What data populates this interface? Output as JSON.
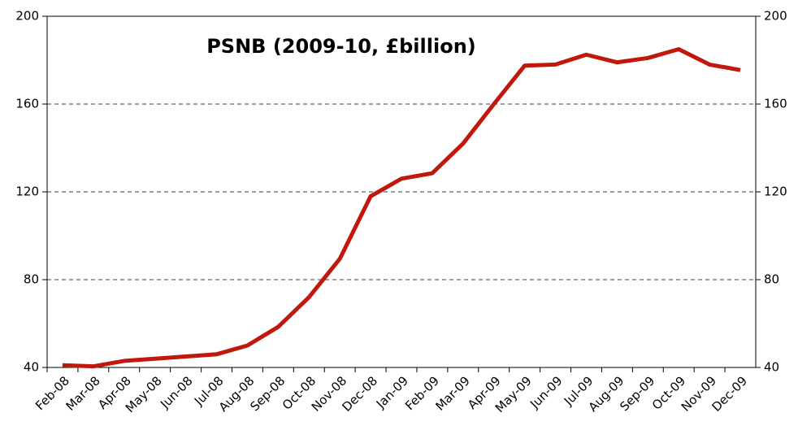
{
  "chart_data": {
    "type": "line",
    "title": "PSNB (2009-10, £billion)",
    "categories": [
      "Feb-08",
      "Mar-08",
      "Apr-08",
      "May-08",
      "Jun-08",
      "Jul-08",
      "Aug-08",
      "Sep-08",
      "Oct-08",
      "Nov-08",
      "Dec-08",
      "Jan-09",
      "Feb-09",
      "Mar-09",
      "Apr-09",
      "May-09",
      "Jun-09",
      "Jul-09",
      "Aug-09",
      "Sep-09",
      "Oct-09",
      "Nov-09",
      "Dec-09"
    ],
    "values": [
      41,
      40.5,
      43,
      44,
      45,
      46,
      50,
      58.5,
      72,
      89.5,
      118,
      126,
      128.5,
      142,
      160,
      177.5,
      178,
      182.5,
      179,
      181,
      185,
      178,
      175.5
    ],
    "color": "#c0180c",
    "ylim": [
      40,
      200
    ],
    "yticks": [
      40,
      80,
      120,
      160,
      200
    ],
    "y2lim": [
      40,
      200
    ],
    "y2ticks": [
      40,
      80,
      120,
      160,
      200
    ],
    "grid": true
  }
}
